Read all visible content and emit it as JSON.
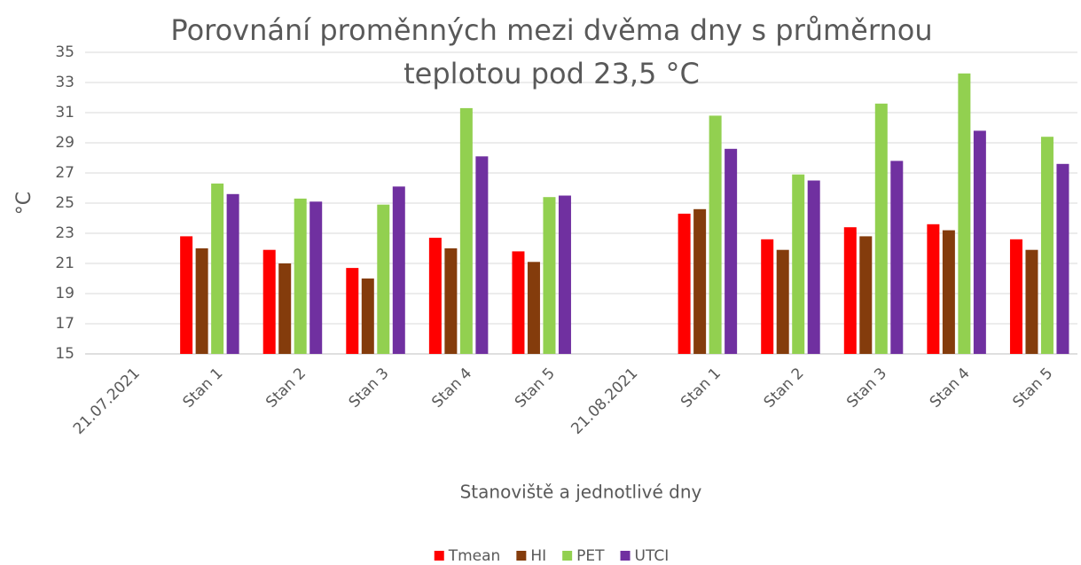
{
  "chart_data": {
    "type": "bar",
    "title": "Porovnání proměnných mezi dvěma dny s průměrnou teplotou pod 23,5 °C",
    "ylabel": "°C",
    "xlabel": "Stanoviště a jednotlivé dny",
    "categories": [
      "21.07.2021",
      "Stan 1",
      "Stan 2",
      "Stan 3",
      "Stan 4",
      "Stan 5",
      "21.08.2021",
      "Stan 1",
      "Stan 2",
      "Stan 3",
      "Stan 4",
      "Stan 5"
    ],
    "series": [
      {
        "name": "Tmean",
        "color": "#ff0000",
        "values": [
          null,
          22.8,
          21.9,
          20.7,
          22.7,
          21.8,
          null,
          24.3,
          22.6,
          23.4,
          23.6,
          22.6
        ]
      },
      {
        "name": "HI",
        "color": "#843c0c",
        "values": [
          null,
          22.0,
          21.0,
          20.0,
          22.0,
          21.1,
          null,
          24.6,
          21.9,
          22.8,
          23.2,
          21.9
        ]
      },
      {
        "name": "PET",
        "color": "#92d050",
        "values": [
          null,
          26.3,
          25.3,
          24.9,
          31.3,
          25.4,
          null,
          30.8,
          26.9,
          31.6,
          33.6,
          29.4
        ]
      },
      {
        "name": "UTCI",
        "color": "#7030a0",
        "values": [
          null,
          25.6,
          25.1,
          26.1,
          28.1,
          25.5,
          null,
          28.6,
          26.5,
          27.8,
          29.8,
          27.6
        ]
      }
    ],
    "ylim": [
      15,
      35
    ],
    "yticks": [
      15,
      17,
      19,
      21,
      23,
      25,
      27,
      29,
      31,
      33,
      35
    ],
    "grid": true,
    "legend": "bottom"
  }
}
